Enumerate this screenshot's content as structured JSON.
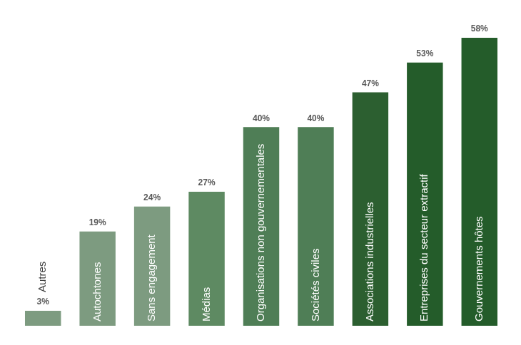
{
  "chart_data": {
    "type": "bar",
    "categories": [
      "Autres",
      "Autochtones",
      "Sans engagement",
      "Médias",
      "Organisations non gouvernementales",
      "Sociétés civiles",
      "Associations industrielles",
      "Entreprises du secteur extractif",
      "Gouvernements hôtes"
    ],
    "values": [
      3,
      19,
      24,
      27,
      40,
      40,
      47,
      53,
      58
    ],
    "value_labels": [
      "3%",
      "19%",
      "24%",
      "27%",
      "40%",
      "40%",
      "47%",
      "53%",
      "58%"
    ],
    "colors": [
      "#7d9b80",
      "#7d9b80",
      "#7d9b80",
      "#5e8a62",
      "#4f7e56",
      "#4f7e56",
      "#2c5f30",
      "#245c2a",
      "#245c2a"
    ],
    "data_labels": true,
    "tick_labels": false,
    "grid": false
  }
}
